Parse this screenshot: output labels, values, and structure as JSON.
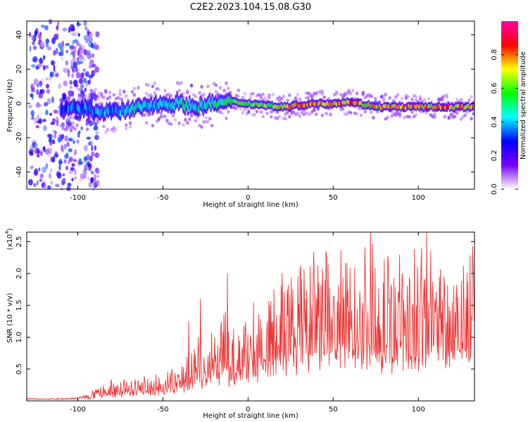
{
  "title": "C2E2.2023.104.15.08.G30",
  "chart_data": [
    {
      "type": "heatmap",
      "xlabel": "Height of straight line (km)",
      "ylabel": "Frequency (Hz)",
      "xlim": [
        -130,
        133
      ],
      "ylim": [
        -50,
        48
      ],
      "xticks": [
        -100,
        -50,
        0,
        50,
        100
      ],
      "yticks": [
        -40,
        -20,
        0,
        20,
        40
      ],
      "grid": false,
      "colorbar": {
        "label": "Normalized spectral amplitude",
        "range": [
          0,
          1
        ],
        "ticks": [
          "0.0",
          "0.2",
          "0.4",
          "0.6",
          "0.8"
        ],
        "colormap": [
          "#ffffff",
          "#7800ff",
          "#0000ff",
          "#00ffff",
          "#00ff00",
          "#ffff00",
          "#ff0000",
          "#ff00aa"
        ]
      },
      "ridge": [
        {
          "x": -110,
          "freq": -4,
          "amp": 0.35
        },
        {
          "x": -100,
          "freq": -3,
          "amp": 0.4
        },
        {
          "x": -90,
          "freq": -4,
          "amp": 0.4
        },
        {
          "x": -80,
          "freq": -5,
          "amp": 0.4
        },
        {
          "x": -70,
          "freq": -4,
          "amp": 0.45
        },
        {
          "x": -60,
          "freq": -1,
          "amp": 0.5
        },
        {
          "x": -50,
          "freq": 0,
          "amp": 0.45
        },
        {
          "x": -40,
          "freq": 0,
          "amp": 0.5
        },
        {
          "x": -30,
          "freq": -2,
          "amp": 0.45
        },
        {
          "x": -20,
          "freq": 0,
          "amp": 0.5
        },
        {
          "x": -10,
          "freq": 1,
          "amp": 0.55
        },
        {
          "x": 0,
          "freq": 0,
          "amp": 0.6
        },
        {
          "x": 10,
          "freq": -1,
          "amp": 0.65
        },
        {
          "x": 20,
          "freq": -2,
          "amp": 0.75
        },
        {
          "x": 30,
          "freq": -1,
          "amp": 0.85
        },
        {
          "x": 40,
          "freq": 0,
          "amp": 0.85
        },
        {
          "x": 50,
          "freq": 0,
          "amp": 0.85
        },
        {
          "x": 60,
          "freq": 1,
          "amp": 0.8
        },
        {
          "x": 70,
          "freq": -1,
          "amp": 0.75
        },
        {
          "x": 80,
          "freq": -2,
          "amp": 0.75
        },
        {
          "x": 90,
          "freq": -2,
          "amp": 0.8
        },
        {
          "x": 100,
          "freq": -2,
          "amp": 0.8
        },
        {
          "x": 110,
          "freq": -2,
          "amp": 0.8
        },
        {
          "x": 120,
          "freq": -2,
          "amp": 0.8
        },
        {
          "x": 133,
          "freq": -2,
          "amp": 0.8
        }
      ]
    },
    {
      "type": "line",
      "xlabel": "Height of straight line (km)",
      "ylabel": "SNR (10 * v/v)",
      "y_multiplier_label": "(x10",
      "y_multiplier_exponent": "4",
      "xlim": [
        -130,
        133
      ],
      "ylim": [
        0,
        2.65
      ],
      "xticks": [
        -100,
        -50,
        0,
        50,
        100
      ],
      "yticks": [
        0.5,
        1.0,
        1.5,
        2.0,
        2.5
      ],
      "ytick_labels": [
        "0.5",
        "1.0",
        "1.5",
        "2.0",
        "2.5"
      ],
      "grid": false,
      "series": [
        {
          "color": "#ee3333",
          "envelope": [
            {
              "x": -130,
              "y": 0.03
            },
            {
              "x": -110,
              "y": 0.03
            },
            {
              "x": -100,
              "y": 0.04
            },
            {
              "x": -90,
              "y": 0.1
            },
            {
              "x": -80,
              "y": 0.18
            },
            {
              "x": -70,
              "y": 0.2
            },
            {
              "x": -60,
              "y": 0.22
            },
            {
              "x": -50,
              "y": 0.25
            },
            {
              "x": -40,
              "y": 0.32
            },
            {
              "x": -35,
              "y": 0.5
            },
            {
              "x": -30,
              "y": 0.6
            },
            {
              "x": -25,
              "y": 0.55
            },
            {
              "x": -20,
              "y": 0.6
            },
            {
              "x": -15,
              "y": 0.8
            },
            {
              "x": -10,
              "y": 0.7
            },
            {
              "x": 0,
              "y": 0.8
            },
            {
              "x": 10,
              "y": 1.0
            },
            {
              "x": 20,
              "y": 1.1
            },
            {
              "x": 30,
              "y": 1.2
            },
            {
              "x": 40,
              "y": 1.3
            },
            {
              "x": 50,
              "y": 1.35
            },
            {
              "x": 60,
              "y": 1.35
            },
            {
              "x": 70,
              "y": 1.4
            },
            {
              "x": 80,
              "y": 1.3
            },
            {
              "x": 90,
              "y": 1.35
            },
            {
              "x": 100,
              "y": 1.35
            },
            {
              "x": 110,
              "y": 1.4
            },
            {
              "x": 120,
              "y": 1.4
            },
            {
              "x": 133,
              "y": 1.45
            }
          ],
          "peaks": [
            {
              "x": -35,
              "y": 1.25
            },
            {
              "x": -28,
              "y": 1.6
            },
            {
              "x": -12,
              "y": 2.0
            },
            {
              "x": 72,
              "y": 2.65
            },
            {
              "x": 105,
              "y": 2.65
            }
          ]
        }
      ]
    }
  ]
}
